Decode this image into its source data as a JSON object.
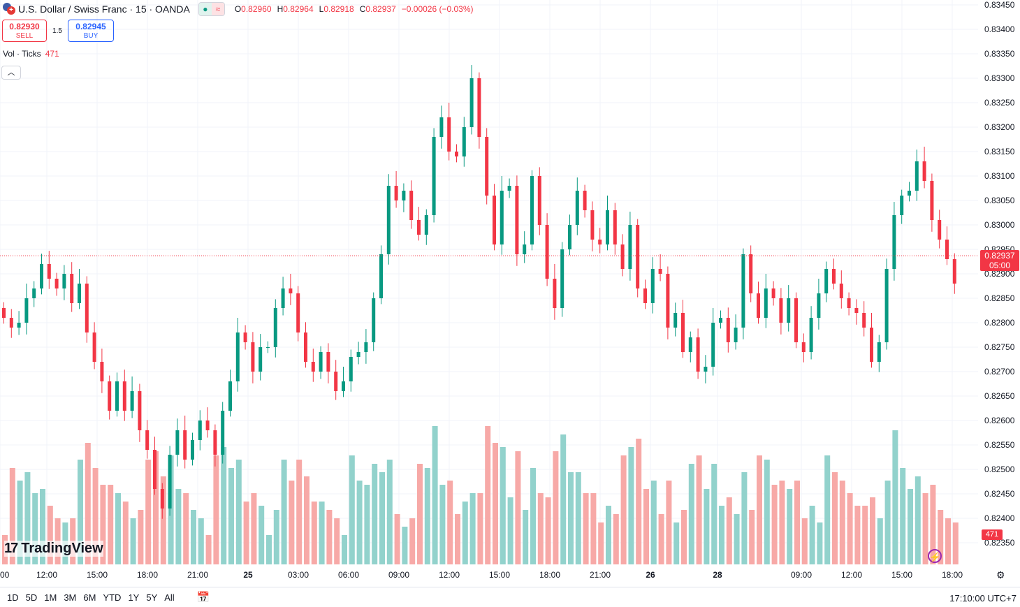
{
  "header": {
    "title": "U.S. Dollar / Swiss Franc · 15 · OANDA",
    "ohlc": {
      "open_label": "O",
      "open": "0.82960",
      "high_label": "H",
      "high": "0.82964",
      "low_label": "L",
      "low": "0.82918",
      "close_label": "C",
      "close": "0.82937",
      "change": "−0.00026 (−0.03%)"
    }
  },
  "trade": {
    "sell_price": "0.82930",
    "sell_label": "SELL",
    "spread": "1.5",
    "buy_price": "0.82945",
    "buy_label": "BUY"
  },
  "volume_legend": {
    "label": "Vol · Ticks",
    "value": "471"
  },
  "collapse_icon": "chevron-up-icon",
  "logo": {
    "text": "TradingView"
  },
  "current_price": {
    "price": "0.82937",
    "countdown": "05:00",
    "value": 0.82937
  },
  "current_volume": "471",
  "price_axis": {
    "ticks": [
      "0.83450",
      "0.83400",
      "0.83350",
      "0.83300",
      "0.83250",
      "0.83200",
      "0.83150",
      "0.83100",
      "0.83050",
      "0.83000",
      "0.82950",
      "0.82900",
      "0.82850",
      "0.82800",
      "0.82750",
      "0.82700",
      "0.82650",
      "0.82600",
      "0.82550",
      "0.82500",
      "0.82450",
      "0.82400",
      "0.82350"
    ]
  },
  "time_axis": {
    "labels": [
      "00",
      "12:00",
      "15:00",
      "18:00",
      "21:00",
      "25",
      "03:00",
      "06:00",
      "09:00",
      "12:00",
      "15:00",
      "18:00",
      "21:00",
      "26",
      "28",
      "09:00",
      "12:00",
      "15:00",
      "18:00"
    ]
  },
  "bottom": {
    "ranges": [
      "1D",
      "5D",
      "1M",
      "3M",
      "6M",
      "YTD",
      "1Y",
      "5Y",
      "All"
    ],
    "clock": "17:10:00 UTC+7"
  },
  "colors": {
    "up": "#089981",
    "down": "#f23645",
    "vol_up": "#92d2cc",
    "vol_down": "#f7a9a7"
  },
  "chart_data": {
    "type": "candlestick",
    "interval": "15",
    "candles_close": [
      0.8281,
      0.8279,
      0.828,
      0.8285,
      0.8287,
      0.8292,
      0.8289,
      0.8287,
      0.829,
      0.8284,
      0.8288,
      0.8278,
      0.8272,
      0.8268,
      0.8262,
      0.8268,
      0.8262,
      0.8266,
      0.8258,
      0.8254,
      0.8246,
      0.8242,
      0.8253,
      0.8258,
      0.8252,
      0.8256,
      0.826,
      0.8258,
      0.8253,
      0.8262,
      0.8268,
      0.8278,
      0.8276,
      0.827,
      0.8275,
      0.8275,
      0.8283,
      0.8287,
      0.8286,
      0.8278,
      0.8272,
      0.827,
      0.8274,
      0.827,
      0.8266,
      0.8268,
      0.8273,
      0.8274,
      0.8276,
      0.8285,
      0.8294,
      0.8308,
      0.8305,
      0.8307,
      0.8301,
      0.8298,
      0.8302,
      0.8318,
      0.8322,
      0.8315,
      0.8314,
      0.832,
      0.833,
      0.8318,
      0.8306,
      0.8296,
      0.8307,
      0.8308,
      0.8294,
      0.8296,
      0.831,
      0.83,
      0.8289,
      0.8283,
      0.8295,
      0.83,
      0.8307,
      0.8303,
      0.8297,
      0.8296,
      0.8303,
      0.8296,
      0.8291,
      0.83,
      0.8287,
      0.8284,
      0.8291,
      0.829,
      0.8279,
      0.8282,
      0.8274,
      0.8277,
      0.827,
      0.8271,
      0.828,
      0.8281,
      0.8276,
      0.8279,
      0.8294,
      0.8286,
      0.8281,
      0.8287,
      0.8285,
      0.828,
      0.8285,
      0.8276,
      0.8274,
      0.8281,
      0.8286,
      0.8291,
      0.8288,
      0.8285,
      0.8283,
      0.8282,
      0.8279,
      0.8272,
      0.8276,
      0.8291,
      0.8302,
      0.8306,
      0.8307,
      0.8313,
      0.8309,
      0.8301,
      0.8297,
      0.8293,
      0.8288
    ]
  }
}
